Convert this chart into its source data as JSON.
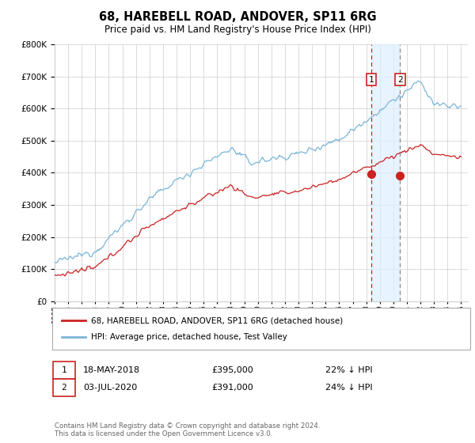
{
  "title": "68, HAREBELL ROAD, ANDOVER, SP11 6RG",
  "subtitle": "Price paid vs. HM Land Registry's House Price Index (HPI)",
  "ylim": [
    0,
    800000
  ],
  "yticks": [
    0,
    100000,
    200000,
    300000,
    400000,
    500000,
    600000,
    700000,
    800000
  ],
  "xlim_start": 1995,
  "xlim_end": 2025.5,
  "hpi_color": "#7ab4d8",
  "price_color": "#cc2222",
  "marker1_x": 2018.38,
  "marker2_x": 2020.5,
  "marker1_price": 395000,
  "marker2_price": 391000,
  "legend_label1": "68, HAREBELL ROAD, ANDOVER, SP11 6RG (detached house)",
  "legend_label2": "HPI: Average price, detached house, Test Valley",
  "transaction1_date": "18-MAY-2018",
  "transaction1_price": "£395,000",
  "transaction1_hpi": "22% ↓ HPI",
  "transaction2_date": "03-JUL-2020",
  "transaction2_price": "£391,000",
  "transaction2_hpi": "24% ↓ HPI",
  "footer": "Contains HM Land Registry data © Crown copyright and database right 2024.\nThis data is licensed under the Open Government Licence v3.0.",
  "background_color": "#ffffff",
  "grid_color": "#cccccc",
  "shade_color": "#ddeeff"
}
